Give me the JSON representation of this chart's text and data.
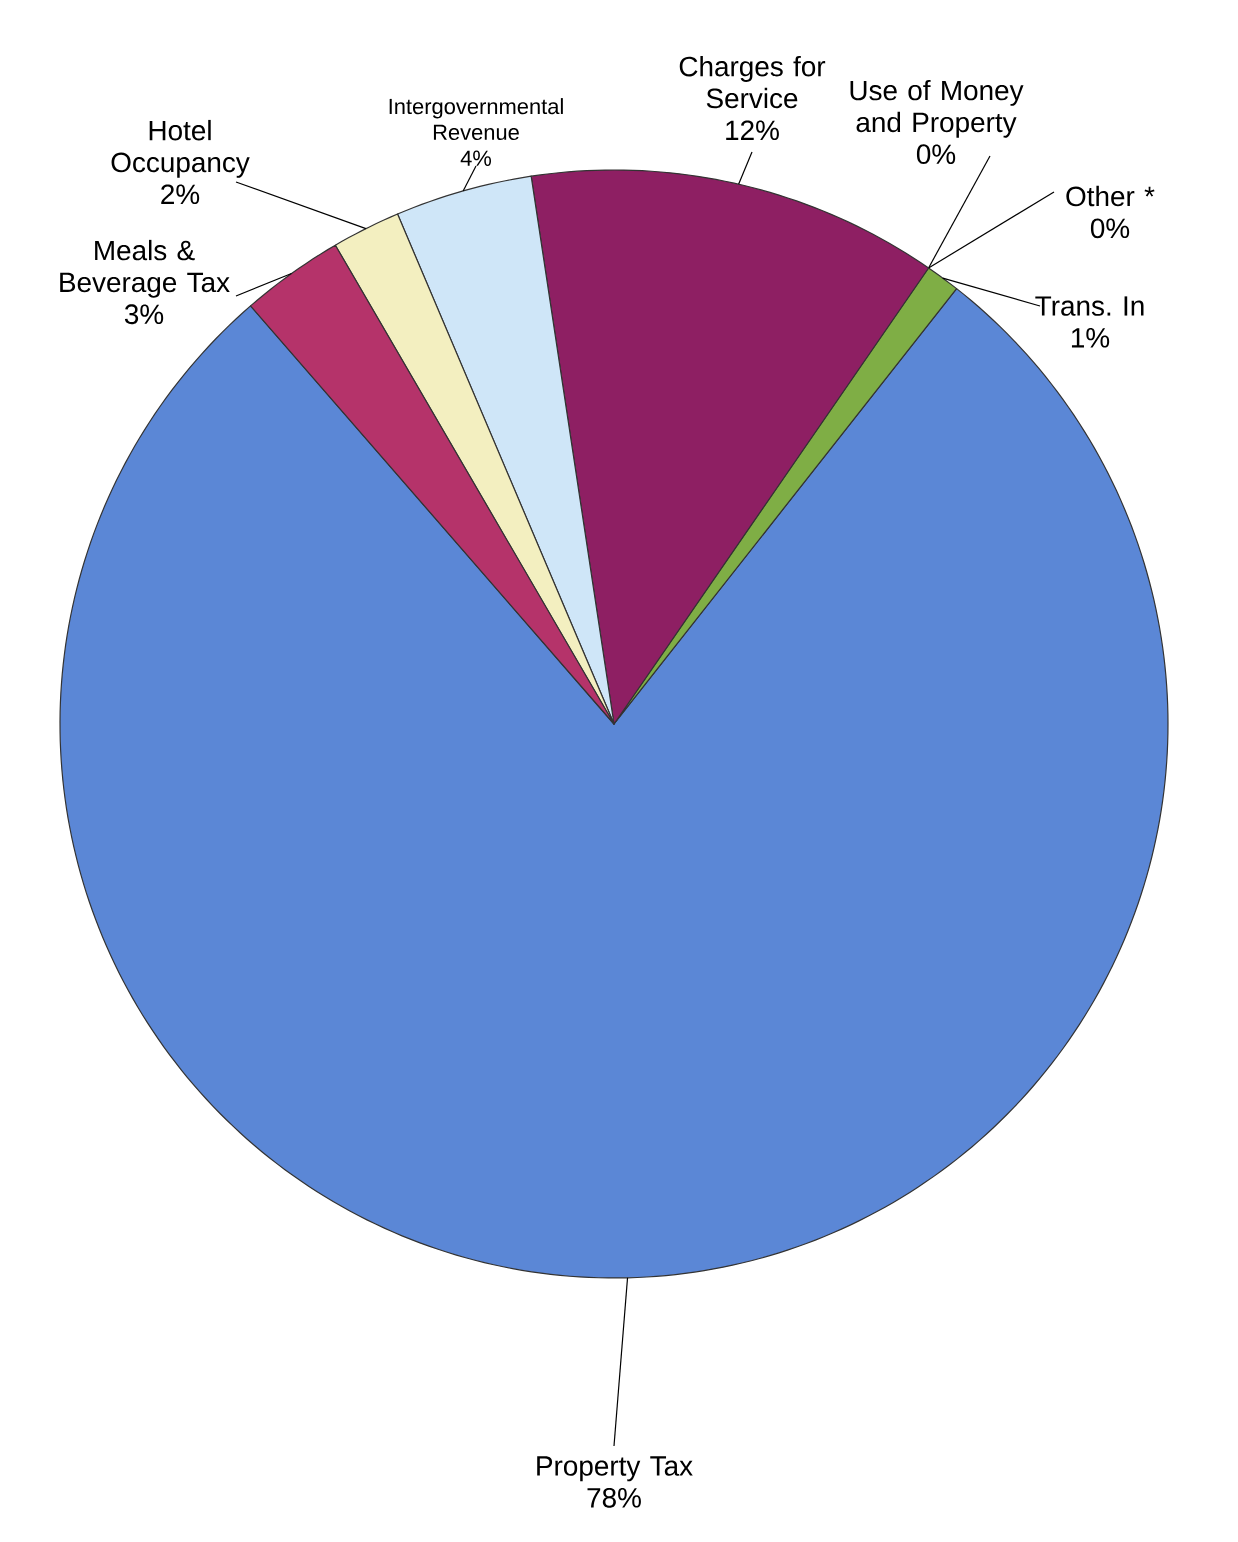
{
  "chart_data": {
    "type": "pie",
    "categories": [
      "Property Tax",
      "Trans. In",
      "Other *",
      "Use of Money and Property",
      "Charges for Service",
      "Intergovernmental Revenue",
      "Hotel Occupancy",
      "Meals & Beverage Tax"
    ],
    "values": [
      78,
      1,
      0,
      0,
      12,
      4,
      2,
      3
    ],
    "colors": [
      "#5b87d6",
      "#7fae45",
      "#1a1a5a",
      "#3a8ee0",
      "#8e1f63",
      "#cfe6f8",
      "#f3efc0",
      "#b5336a"
    ],
    "value_labels": [
      "78%",
      "1%",
      "0%",
      "0%",
      "12%",
      "4%",
      "2%",
      "3%"
    ]
  }
}
